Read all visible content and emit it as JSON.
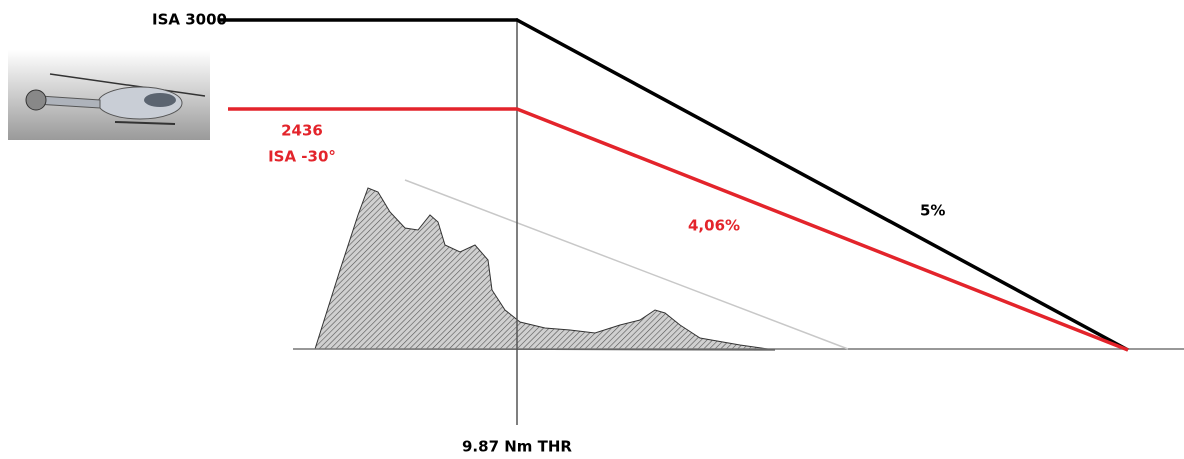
{
  "labels": {
    "isa_3000": "ISA 3000",
    "altitude_low": "2436",
    "isa_low": "ISA -30°",
    "gradient_high": "5%",
    "gradient_low": "4,06%",
    "threshold": "9.87 Nm THR"
  }
}
